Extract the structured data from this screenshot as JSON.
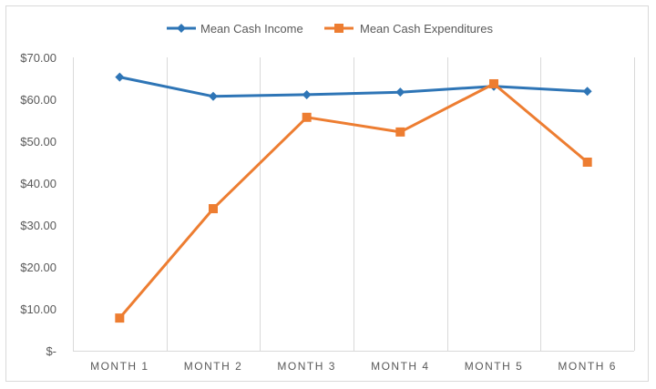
{
  "chart_data": {
    "type": "line",
    "categories": [
      "MONTH 1",
      "MONTH 2",
      "MONTH 3",
      "MONTH 4",
      "MONTH 5",
      "MONTH 6"
    ],
    "series": [
      {
        "name": "Mean Cash Income",
        "color": "#2e75b6",
        "marker": "diamond",
        "values": [
          65.3,
          60.7,
          61.1,
          61.7,
          63.1,
          61.9
        ]
      },
      {
        "name": "Mean Cash Expenditures",
        "color": "#ed7d31",
        "marker": "square",
        "values": [
          7.8,
          33.9,
          55.7,
          52.2,
          63.7,
          45.0
        ]
      }
    ],
    "ylim": [
      0,
      70
    ],
    "yticks": [
      0,
      10,
      20,
      30,
      40,
      50,
      60,
      70
    ],
    "ytick_labels": [
      "$-",
      "$10.00",
      "$20.00",
      "$30.00",
      "$40.00",
      "$50.00",
      "$60.00",
      "$70.00"
    ],
    "title": "",
    "xlabel": "",
    "ylabel": "",
    "legend_position": "top",
    "grid": "vertical category separators",
    "grid_color": "#d9d9d9"
  }
}
